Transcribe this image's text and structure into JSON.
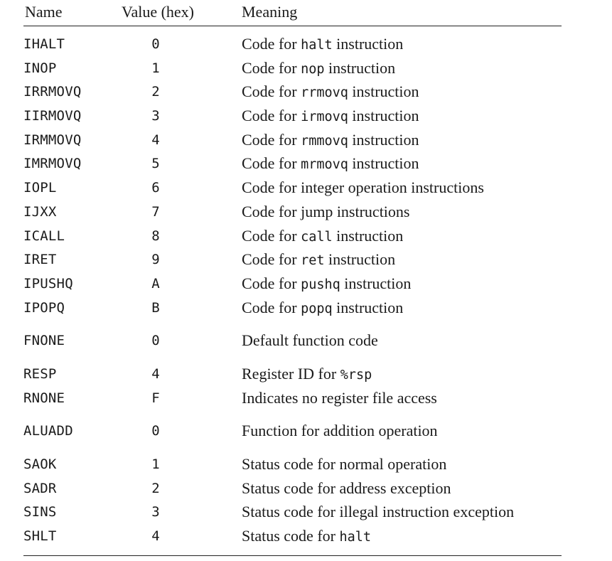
{
  "table": {
    "headers": {
      "name": "Name",
      "value": "Value (hex)",
      "meaning": "Meaning"
    },
    "rows": [
      {
        "name": "IHALT",
        "value": "0",
        "meaning_pre": "Code for ",
        "meaning_code": "halt",
        "meaning_post": " instruction"
      },
      {
        "name": "INOP",
        "value": "1",
        "meaning_pre": "Code for ",
        "meaning_code": "nop",
        "meaning_post": " instruction"
      },
      {
        "name": "IRRMOVQ",
        "value": "2",
        "meaning_pre": "Code for ",
        "meaning_code": "rrmovq",
        "meaning_post": " instruction"
      },
      {
        "name": "IIRMOVQ",
        "value": "3",
        "meaning_pre": "Code for ",
        "meaning_code": "irmovq",
        "meaning_post": " instruction"
      },
      {
        "name": "IRMMOVQ",
        "value": "4",
        "meaning_pre": "Code for ",
        "meaning_code": "rmmovq",
        "meaning_post": " instruction"
      },
      {
        "name": "IMRMOVQ",
        "value": "5",
        "meaning_pre": "Code for ",
        "meaning_code": "mrmovq",
        "meaning_post": " instruction"
      },
      {
        "name": "IOPL",
        "value": "6",
        "meaning_pre": "Code for integer operation instructions",
        "meaning_code": "",
        "meaning_post": ""
      },
      {
        "name": "IJXX",
        "value": "7",
        "meaning_pre": "Code for jump instructions",
        "meaning_code": "",
        "meaning_post": ""
      },
      {
        "name": "ICALL",
        "value": "8",
        "meaning_pre": "Code for ",
        "meaning_code": "call",
        "meaning_post": " instruction"
      },
      {
        "name": "IRET",
        "value": "9",
        "meaning_pre": "Code for ",
        "meaning_code": "ret",
        "meaning_post": " instruction"
      },
      {
        "name": "IPUSHQ",
        "value": "A",
        "meaning_pre": "Code for ",
        "meaning_code": "pushq",
        "meaning_post": " instruction"
      },
      {
        "name": "IPOPQ",
        "value": "B",
        "meaning_pre": "Code for ",
        "meaning_code": "popq",
        "meaning_post": " instruction"
      },
      {
        "name": "FNONE",
        "value": "0",
        "meaning_pre": "Default function code",
        "meaning_code": "",
        "meaning_post": "",
        "group_start": true
      },
      {
        "name": "RESP",
        "value": "4",
        "meaning_pre": "Register ID for ",
        "meaning_code": "%rsp",
        "meaning_post": "",
        "group_start": true
      },
      {
        "name": "RNONE",
        "value": "F",
        "meaning_pre": "Indicates no register file access",
        "meaning_code": "",
        "meaning_post": ""
      },
      {
        "name": "ALUADD",
        "value": "0",
        "meaning_pre": "Function for addition operation",
        "meaning_code": "",
        "meaning_post": "",
        "group_start": true
      },
      {
        "name": "SAOK",
        "value": "1",
        "meaning_pre": "Status code for normal operation",
        "meaning_code": "",
        "meaning_post": "",
        "group_start": true
      },
      {
        "name": "SADR",
        "value": "2",
        "meaning_pre": "Status code for address exception",
        "meaning_code": "",
        "meaning_post": ""
      },
      {
        "name": "SINS",
        "value": "3",
        "meaning_pre": "Status code for illegal instruction exception",
        "meaning_code": "",
        "meaning_post": ""
      },
      {
        "name": "SHLT",
        "value": "4",
        "meaning_pre": "Status code for ",
        "meaning_code": "halt",
        "meaning_post": ""
      }
    ]
  }
}
